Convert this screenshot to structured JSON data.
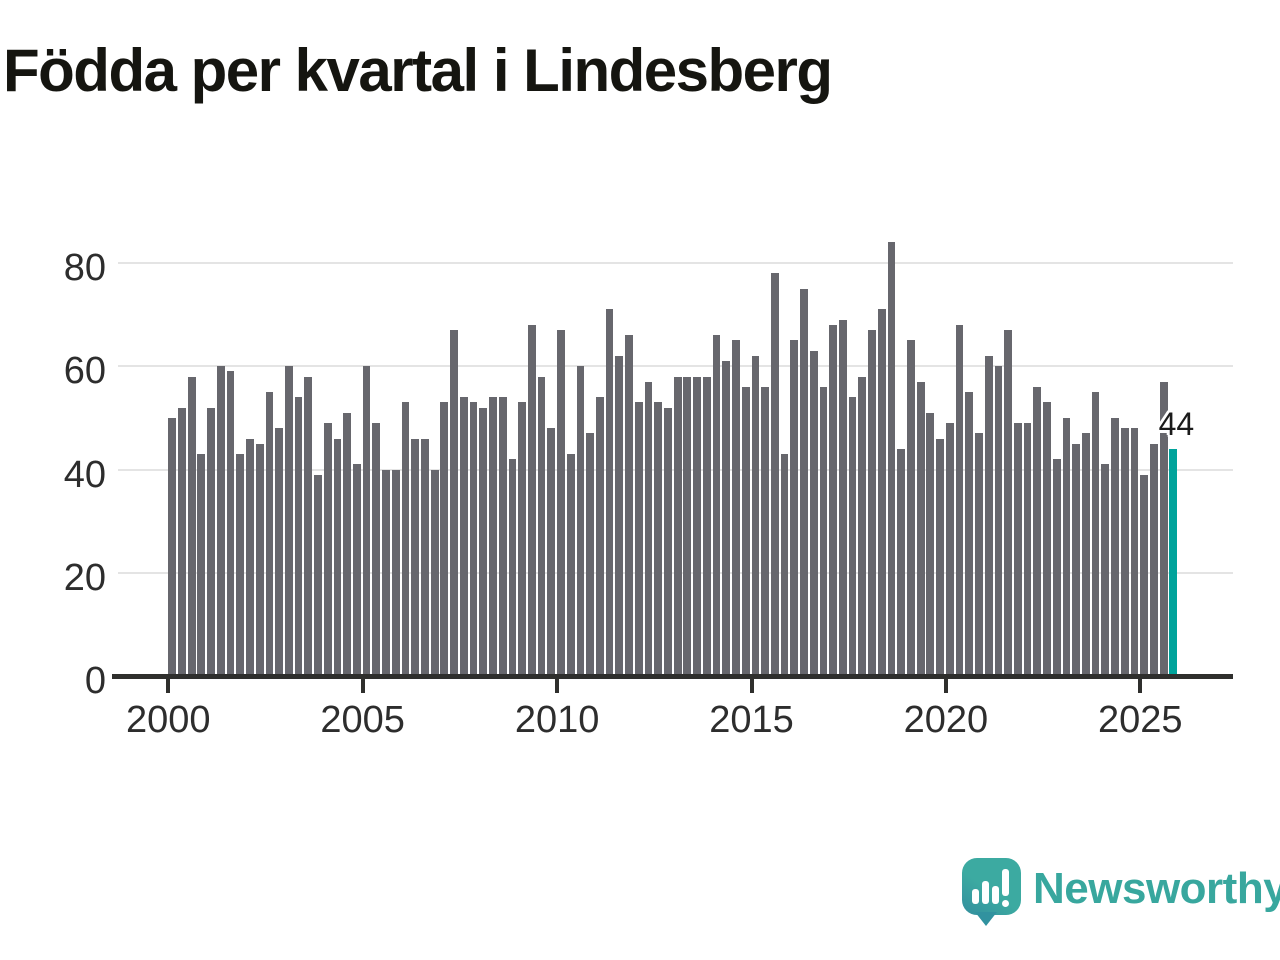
{
  "title": "Födda per kvartal i Lindesberg",
  "chart_data": {
    "type": "bar",
    "title": "Födda per kvartal i Lindesberg",
    "start_period": "2000 Q1",
    "end_period": "2025 Q4",
    "period_unit": "quarter",
    "values": [
      50,
      52,
      58,
      43,
      52,
      60,
      59,
      43,
      46,
      45,
      55,
      48,
      60,
      54,
      58,
      39,
      49,
      46,
      51,
      41,
      60,
      49,
      40,
      40,
      53,
      46,
      46,
      40,
      53,
      67,
      54,
      53,
      52,
      54,
      54,
      42,
      53,
      68,
      58,
      48,
      67,
      43,
      60,
      47,
      54,
      71,
      62,
      66,
      53,
      57,
      53,
      52,
      58,
      58,
      58,
      58,
      66,
      61,
      65,
      56,
      62,
      56,
      78,
      43,
      65,
      75,
      63,
      56,
      68,
      69,
      54,
      58,
      67,
      71,
      84,
      44,
      65,
      57,
      51,
      46,
      49,
      68,
      55,
      47,
      62,
      60,
      67,
      49,
      49,
      56,
      53,
      42,
      50,
      45,
      47,
      55,
      41,
      50,
      48,
      48,
      39,
      45,
      57,
      44
    ],
    "highlight": {
      "index": 103,
      "value": 44,
      "label": "44"
    },
    "x_tick_labels": [
      "2000",
      "2005",
      "2010",
      "2015",
      "2020",
      "2025"
    ],
    "x_tick_years": [
      2000,
      2005,
      2010,
      2015,
      2020,
      2025
    ],
    "y_tick_labels": [
      "0",
      "20",
      "40",
      "60",
      "80"
    ],
    "y_ticks": [
      0,
      20,
      40,
      60,
      80
    ],
    "ylim": [
      0,
      88
    ],
    "grid": "horizontal",
    "legend": "none",
    "bar_color": "#67676d",
    "highlight_color": "#00a39b",
    "axis_color": "#2f2f2d",
    "gridline_color": "#e4e4e4"
  },
  "branding": {
    "logo_text": "Newsworthy",
    "logo_icon": "speech-bubble-bar-chart-icon",
    "brand_color": "#38a79e"
  }
}
